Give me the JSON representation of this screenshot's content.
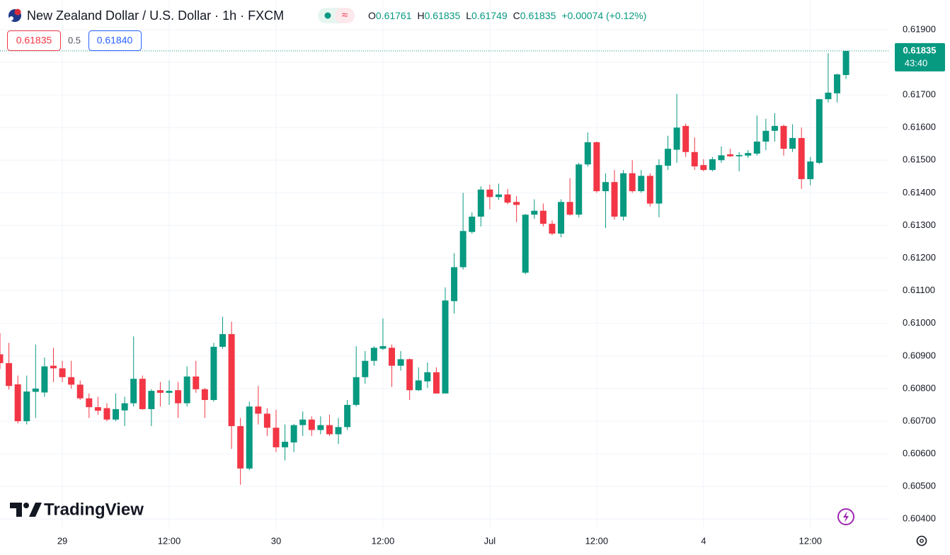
{
  "header": {
    "title": "New Zealand Dollar / U.S. Dollar · 1h · FXCM",
    "ohlc": [
      {
        "label": "O",
        "value": "0.61761"
      },
      {
        "label": "H",
        "value": "0.61835"
      },
      {
        "label": "L",
        "value": "0.61749"
      },
      {
        "label": "C",
        "value": "0.61835"
      }
    ],
    "change": "+0.00074 (+0.12%)"
  },
  "trade": {
    "sell_price": "0.61835",
    "spread": "0.5",
    "buy_price": "0.61840"
  },
  "price_tag": {
    "price": "0.61835",
    "countdown": "43:40"
  },
  "brand": "TradingView",
  "chart_data": {
    "type": "candlestick",
    "up_color": "#089981",
    "down_color": "#f23645",
    "grid": true,
    "ylim": [
      0.60368,
      0.61991
    ],
    "yticks": [
      {
        "value": 0.604,
        "label": "0.60400"
      },
      {
        "value": 0.605,
        "label": "0.60500"
      },
      {
        "value": 0.606,
        "label": "0.60600"
      },
      {
        "value": 0.607,
        "label": "0.60700"
      },
      {
        "value": 0.608,
        "label": "0.60800"
      },
      {
        "value": 0.609,
        "label": "0.60900"
      },
      {
        "value": 0.61,
        "label": "0.61000"
      },
      {
        "value": 0.611,
        "label": "0.61100"
      },
      {
        "value": 0.612,
        "label": "0.61200"
      },
      {
        "value": 0.613,
        "label": "0.61300"
      },
      {
        "value": 0.614,
        "label": "0.61400"
      },
      {
        "value": 0.615,
        "label": "0.61500"
      },
      {
        "value": 0.616,
        "label": "0.61600"
      },
      {
        "value": 0.617,
        "label": "0.61700"
      },
      {
        "value": 0.618,
        "label": "0.61800"
      },
      {
        "value": 0.619,
        "label": "0.61900"
      }
    ],
    "categories": [
      null,
      null,
      null,
      null,
      null,
      null,
      null,
      "29",
      null,
      null,
      null,
      null,
      null,
      null,
      null,
      null,
      null,
      null,
      null,
      "12:00",
      null,
      null,
      null,
      null,
      null,
      null,
      null,
      null,
      null,
      null,
      null,
      "30",
      null,
      null,
      null,
      null,
      null,
      null,
      null,
      null,
      null,
      null,
      null,
      "12:00",
      null,
      null,
      null,
      null,
      null,
      null,
      null,
      null,
      null,
      null,
      null,
      "Jul",
      null,
      null,
      null,
      null,
      null,
      null,
      null,
      null,
      null,
      null,
      null,
      "12:00",
      null,
      null,
      null,
      null,
      null,
      null,
      null,
      null,
      null,
      null,
      null,
      "4",
      null,
      null,
      null,
      null,
      null,
      null,
      null,
      null,
      null,
      null,
      null,
      "12:00",
      null,
      null,
      null,
      null
    ],
    "open": [
      0.60905,
      0.60878,
      0.60813,
      0.607,
      0.6079,
      0.60788,
      0.6087,
      0.60862,
      0.60835,
      0.60812,
      0.6077,
      0.60743,
      0.6074,
      0.60705,
      0.60733,
      0.60755,
      0.6083,
      0.60737,
      0.60795,
      0.60787,
      0.60795,
      0.60755,
      0.60837,
      0.60798,
      0.60765,
      0.60928,
      0.60967,
      0.60685,
      0.60555,
      0.60745,
      0.60723,
      0.6068,
      0.6062,
      0.60635,
      0.60688,
      0.60705,
      0.60673,
      0.60688,
      0.6066,
      0.60682,
      0.6075,
      0.60835,
      0.60885,
      0.60922,
      0.60925,
      0.6087,
      0.6089,
      0.60795,
      0.60822,
      0.6085,
      0.60785,
      0.61068,
      0.61172,
      0.6128,
      0.61327,
      0.6141,
      0.61387,
      0.61395,
      0.61372,
      0.61155,
      0.61333,
      0.61345,
      0.61305,
      0.61275,
      0.61372,
      0.61333,
      0.61487,
      0.61555,
      0.61405,
      0.61433,
      0.61327,
      0.6146,
      0.61405,
      0.61452,
      0.61367,
      0.61483,
      0.61532,
      0.61605,
      0.61525,
      0.61485,
      0.6147,
      0.615,
      0.61518,
      0.61512,
      0.61514,
      0.6152,
      0.61557,
      0.6159,
      0.61605,
      0.61535,
      0.61568,
      0.61442,
      0.61492,
      0.61687,
      0.61705,
      0.61761
    ],
    "high": [
      0.6097,
      0.6094,
      0.6084,
      0.6084,
      0.60935,
      0.60895,
      0.60925,
      0.60885,
      0.60885,
      0.60825,
      0.60785,
      0.60775,
      0.60755,
      0.60785,
      0.60775,
      0.6096,
      0.6084,
      0.60798,
      0.6082,
      0.60825,
      0.6082,
      0.60868,
      0.60885,
      0.60802,
      0.6094,
      0.6102,
      0.61005,
      0.6071,
      0.6076,
      0.60808,
      0.6074,
      0.60735,
      0.6069,
      0.60692,
      0.6073,
      0.60715,
      0.60715,
      0.6072,
      0.6071,
      0.60765,
      0.6093,
      0.60915,
      0.6093,
      0.61015,
      0.60935,
      0.60915,
      0.60892,
      0.60865,
      0.6088,
      0.60865,
      0.6111,
      0.61215,
      0.614,
      0.6134,
      0.6142,
      0.61425,
      0.61428,
      0.61412,
      0.6139,
      0.61335,
      0.6138,
      0.61367,
      0.61315,
      0.6138,
      0.61445,
      0.61492,
      0.61585,
      0.61557,
      0.6146,
      0.6147,
      0.6147,
      0.615,
      0.6147,
      0.6146,
      0.61503,
      0.61575,
      0.61703,
      0.61612,
      0.6157,
      0.61503,
      0.6151,
      0.61542,
      0.61535,
      0.61525,
      0.61531,
      0.61637,
      0.61627,
      0.61644,
      0.61609,
      0.6161,
      0.616,
      0.6151,
      0.61688,
      0.61828,
      0.61765,
      0.61835
    ],
    "low": [
      0.6086,
      0.60797,
      0.60693,
      0.6069,
      0.6071,
      0.60775,
      0.6082,
      0.6082,
      0.608,
      0.60765,
      0.6071,
      0.6072,
      0.607,
      0.607,
      0.60685,
      0.60745,
      0.60735,
      0.60685,
      0.60745,
      0.6075,
      0.6071,
      0.60745,
      0.60787,
      0.6071,
      0.6076,
      0.60922,
      0.60615,
      0.60505,
      0.6055,
      0.6069,
      0.60655,
      0.60605,
      0.6058,
      0.60605,
      0.60655,
      0.60655,
      0.6066,
      0.60655,
      0.6063,
      0.60673,
      0.60745,
      0.60815,
      0.6087,
      0.60918,
      0.60805,
      0.60855,
      0.60765,
      0.60793,
      0.60802,
      0.60785,
      0.60785,
      0.6103,
      0.61165,
      0.61275,
      0.61297,
      0.6135,
      0.61378,
      0.61365,
      0.6131,
      0.6115,
      0.6132,
      0.61297,
      0.6127,
      0.61264,
      0.6133,
      0.61325,
      0.6148,
      0.614,
      0.61292,
      0.61318,
      0.61315,
      0.614,
      0.614,
      0.61358,
      0.61325,
      0.6147,
      0.61492,
      0.6151,
      0.6147,
      0.61466,
      0.61466,
      0.61492,
      0.6151,
      0.61466,
      0.61507,
      0.61514,
      0.61531,
      0.61557,
      0.61514,
      0.61525,
      0.61412,
      0.61423,
      0.61488,
      0.61677,
      0.61677,
      0.61749
    ],
    "close": [
      0.60878,
      0.60808,
      0.607,
      0.60791,
      0.608,
      0.60868,
      0.60862,
      0.60835,
      0.60812,
      0.6077,
      0.60743,
      0.60732,
      0.60705,
      0.60737,
      0.60755,
      0.6083,
      0.60737,
      0.60793,
      0.60787,
      0.60793,
      0.60755,
      0.60837,
      0.60798,
      0.60765,
      0.60928,
      0.60967,
      0.60685,
      0.60555,
      0.60745,
      0.60723,
      0.6068,
      0.6062,
      0.60637,
      0.60688,
      0.60705,
      0.60673,
      0.60688,
      0.6066,
      0.60682,
      0.6075,
      0.60835,
      0.60885,
      0.60925,
      0.6093,
      0.6087,
      0.6089,
      0.60795,
      0.60825,
      0.6085,
      0.60785,
      0.6107,
      0.61172,
      0.61283,
      0.61327,
      0.6141,
      0.61387,
      0.61395,
      0.6137,
      0.61363,
      0.61333,
      0.61345,
      0.61305,
      0.61275,
      0.61372,
      0.61333,
      0.61487,
      0.61555,
      0.61405,
      0.61433,
      0.61327,
      0.6146,
      0.61405,
      0.61452,
      0.61367,
      0.61485,
      0.61535,
      0.616,
      0.61525,
      0.61481,
      0.6147,
      0.61503,
      0.61515,
      0.61512,
      0.61516,
      0.61522,
      0.61557,
      0.6159,
      0.61605,
      0.61535,
      0.61568,
      0.61442,
      0.61496,
      0.61687,
      0.61707,
      0.61763,
      0.61835
    ]
  }
}
